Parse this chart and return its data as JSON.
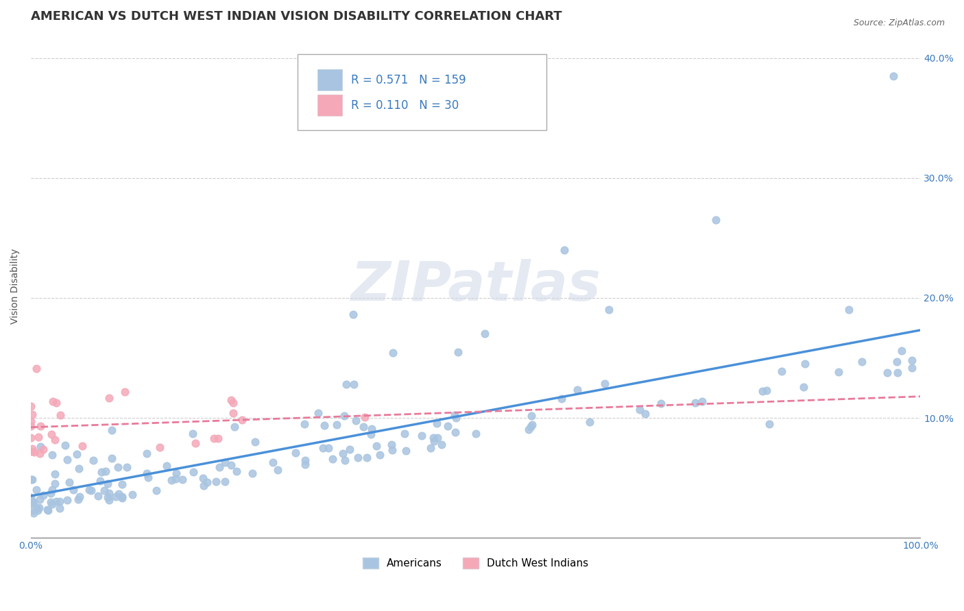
{
  "title": "AMERICAN VS DUTCH WEST INDIAN VISION DISABILITY CORRELATION CHART",
  "source_text": "Source: ZipAtlas.com",
  "xlabel": "",
  "ylabel": "Vision Disability",
  "xlim": [
    0,
    1.0
  ],
  "ylim": [
    0,
    0.42
  ],
  "x_ticks": [
    0.0,
    0.1,
    0.2,
    0.3,
    0.4,
    0.5,
    0.6,
    0.7,
    0.8,
    0.9,
    1.0
  ],
  "y_ticks": [
    0.0,
    0.1,
    0.2,
    0.3,
    0.4
  ],
  "y_tick_labels": [
    "",
    "10.0%",
    "20.0%",
    "30.0%",
    "40.0%"
  ],
  "american_color": "#a8c4e0",
  "dutch_color": "#f4a8b8",
  "american_line_color": "#4a90d9",
  "dutch_line_color": "#e87a9a",
  "american_R": 0.571,
  "american_N": 159,
  "dutch_R": 0.11,
  "dutch_N": 30,
  "legend_label_american": "Americans",
  "legend_label_dutch": "Dutch West Indians",
  "watermark": "ZIPatlas",
  "background_color": "#ffffff",
  "grid_color": "#cccccc",
  "title_fontsize": 13,
  "axis_label_fontsize": 10,
  "tick_fontsize": 10
}
